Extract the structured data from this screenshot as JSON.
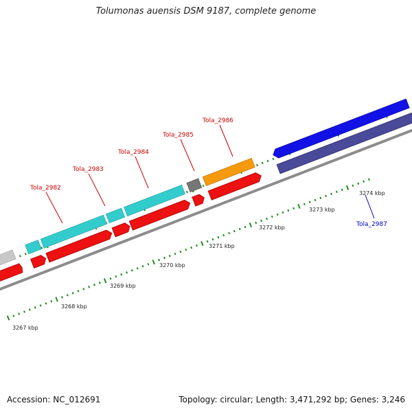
{
  "title": "Tolumonas auensis DSM 9187, complete genome",
  "accession": "Accession: NC_012691",
  "summary": "Topology: circular; Length: 3,471,292 bp; Genes: 3,246",
  "colors": {
    "backbone": "#8c8c8c",
    "tick": "#1e8c1e",
    "cds": "#ee1111",
    "cds_dark": "#a00000",
    "teal": "#33cccc",
    "gray_feature": "#777777",
    "light_gray_feature": "#c8c8c8",
    "orange": "#f59a0c",
    "blue": "#1212e6",
    "navy": "#4a4a9a",
    "label_red": "#cc0000",
    "label_blue": "#0000cc"
  },
  "scale_labels": [
    "3267 kbp",
    "3268 kbp",
    "3269 kbp",
    "3270 kbp",
    "3271 kbp",
    "3272 kbp",
    "3273 kbp",
    "3274 kbp"
  ],
  "gene_labels": [
    {
      "text": "Tola_2982",
      "color": "red"
    },
    {
      "text": "Tola_2983",
      "color": "red"
    },
    {
      "text": "Tola_2984",
      "color": "red"
    },
    {
      "text": "Tola_2985",
      "color": "red"
    },
    {
      "text": "Tola_2986",
      "color": "red"
    },
    {
      "text": "Tola_2987",
      "color": "blue"
    }
  ]
}
